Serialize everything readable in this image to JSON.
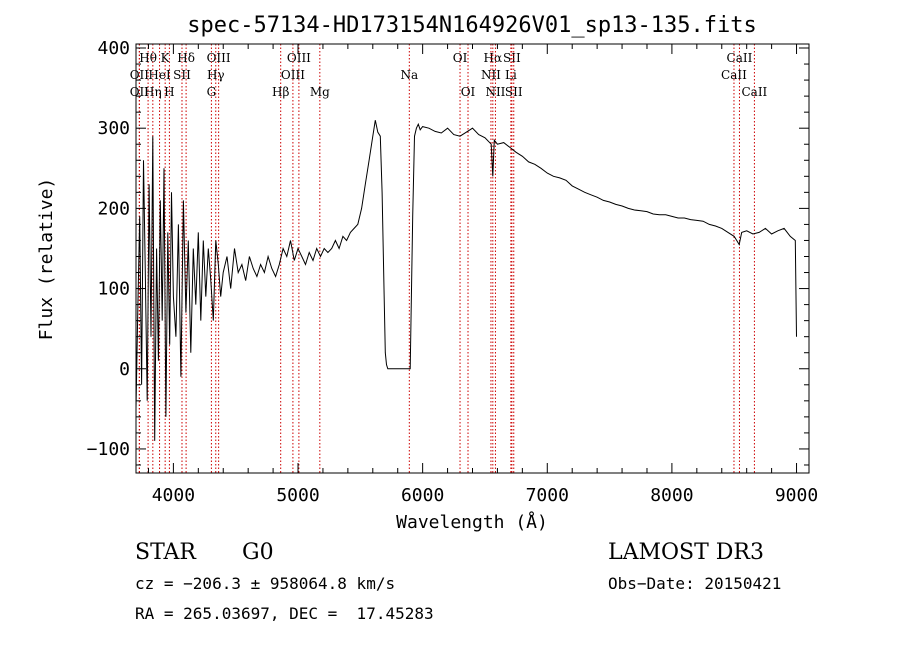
{
  "chart_data": {
    "type": "line",
    "title": "spec-57134-HD173154N164926V01_sp13-135.fits",
    "xlabel": "Wavelength (Å)",
    "ylabel": "Flux (relative)",
    "xlim": [
      3700,
      9100
    ],
    "ylim": [
      -130,
      405
    ],
    "xticks": [
      4000,
      5000,
      6000,
      7000,
      8000,
      9000
    ],
    "yticks": [
      -100,
      0,
      100,
      200,
      300,
      400
    ],
    "grid": false,
    "series": [
      {
        "name": "",
        "x": [
          3700,
          3715,
          3730,
          3745,
          3760,
          3775,
          3790,
          3805,
          3820,
          3835,
          3850,
          3865,
          3880,
          3895,
          3910,
          3925,
          3940,
          3955,
          3970,
          3985,
          4000,
          4020,
          4040,
          4060,
          4080,
          4100,
          4120,
          4140,
          4160,
          4180,
          4200,
          4220,
          4240,
          4260,
          4280,
          4300,
          4320,
          4340,
          4360,
          4380,
          4400,
          4430,
          4460,
          4490,
          4520,
          4550,
          4580,
          4610,
          4640,
          4670,
          4700,
          4730,
          4760,
          4790,
          4820,
          4850,
          4880,
          4910,
          4940,
          4970,
          5000,
          5030,
          5060,
          5090,
          5120,
          5150,
          5180,
          5210,
          5240,
          5270,
          5300,
          5330,
          5360,
          5390,
          5420,
          5450,
          5480,
          5510,
          5540,
          5570,
          5600,
          5620,
          5640,
          5660,
          5675,
          5690,
          5700,
          5710,
          5720,
          5800,
          5900,
          5920,
          5935,
          5950,
          5965,
          5980,
          6000,
          6050,
          6100,
          6150,
          6200,
          6250,
          6300,
          6350,
          6400,
          6450,
          6500,
          6550,
          6563,
          6575,
          6600,
          6650,
          6700,
          6750,
          6800,
          6850,
          6900,
          6950,
          7000,
          7050,
          7100,
          7150,
          7200,
          7250,
          7300,
          7350,
          7400,
          7450,
          7500,
          7550,
          7600,
          7650,
          7700,
          7750,
          7800,
          7850,
          7900,
          7950,
          8000,
          8050,
          8100,
          8150,
          8200,
          8250,
          8300,
          8350,
          8400,
          8450,
          8500,
          8540,
          8560,
          8600,
          8650,
          8700,
          8750,
          8800,
          8850,
          8900,
          8950,
          8990,
          9000
        ],
        "y": [
          -50,
          80,
          190,
          -20,
          260,
          120,
          -40,
          230,
          40,
          290,
          -90,
          150,
          10,
          210,
          60,
          250,
          -60,
          170,
          30,
          220,
          90,
          40,
          180,
          -10,
          210,
          70,
          160,
          20,
          150,
          80,
          170,
          60,
          160,
          90,
          150,
          110,
          60,
          160,
          130,
          90,
          120,
          140,
          100,
          150,
          120,
          130,
          110,
          140,
          125,
          115,
          130,
          120,
          140,
          125,
          115,
          130,
          150,
          140,
          160,
          135,
          150,
          140,
          130,
          145,
          135,
          150,
          140,
          150,
          145,
          150,
          160,
          150,
          165,
          160,
          170,
          175,
          180,
          200,
          230,
          260,
          290,
          310,
          295,
          290,
          220,
          100,
          20,
          5,
          0,
          0,
          0,
          190,
          290,
          300,
          305,
          298,
          302,
          300,
          296,
          294,
          300,
          292,
          290,
          295,
          300,
          292,
          288,
          280,
          240,
          285,
          280,
          282,
          276,
          270,
          265,
          258,
          255,
          250,
          244,
          240,
          238,
          235,
          228,
          224,
          220,
          217,
          214,
          210,
          208,
          205,
          203,
          200,
          198,
          197,
          196,
          193,
          192,
          192,
          190,
          188,
          188,
          186,
          185,
          184,
          180,
          178,
          175,
          170,
          165,
          155,
          170,
          172,
          168,
          170,
          175,
          168,
          172,
          175,
          165,
          160,
          40
        ]
      }
    ],
    "line_markers": [
      {
        "label": "Hθ",
        "x": 3797,
        "row": 1
      },
      {
        "label": "OII",
        "x": 3727,
        "row": 2
      },
      {
        "label": "OII",
        "x": 3727,
        "row": 3
      },
      {
        "label": "K",
        "x": 3934,
        "row": 1
      },
      {
        "label": "HeI",
        "x": 3889,
        "row": 2
      },
      {
        "label": "Hη",
        "x": 3835,
        "row": 3
      },
      {
        "label": "Hδ",
        "x": 4102,
        "row": 1
      },
      {
        "label": "SII",
        "x": 4069,
        "row": 2
      },
      {
        "label": "H",
        "x": 3968,
        "row": 3
      },
      {
        "label": "OIII",
        "x": 4363,
        "row": 1
      },
      {
        "label": "Hγ",
        "x": 4340,
        "row": 2
      },
      {
        "label": "G",
        "x": 4305,
        "row": 3
      },
      {
        "label": "OIII",
        "x": 5007,
        "row": 1
      },
      {
        "label": "OIII",
        "x": 4959,
        "row": 2
      },
      {
        "label": "Hβ",
        "x": 4861,
        "row": 3
      },
      {
        "label": "Mg",
        "x": 5175,
        "row": 3
      },
      {
        "label": "Na",
        "x": 5893,
        "row": 2
      },
      {
        "label": "OI",
        "x": 6300,
        "row": 1
      },
      {
        "label": "OI",
        "x": 6364,
        "row": 3
      },
      {
        "label": "Hα",
        "x": 6563,
        "row": 1
      },
      {
        "label": "SII",
        "x": 6716,
        "row": 1
      },
      {
        "label": "NII",
        "x": 6548,
        "row": 2
      },
      {
        "label": "Li",
        "x": 6708,
        "row": 2
      },
      {
        "label": "NII",
        "x": 6584,
        "row": 3
      },
      {
        "label": "SII",
        "x": 6731,
        "row": 3
      },
      {
        "label": "CaII",
        "x": 8542,
        "row": 1
      },
      {
        "label": "CaII",
        "x": 8498,
        "row": 2
      },
      {
        "label": "CaII",
        "x": 8662,
        "row": 3
      }
    ],
    "colors": {
      "spectrum": "#000000",
      "markers": "#cc0000"
    }
  },
  "info": {
    "object_type": "STAR",
    "subclass": "G0",
    "survey": "LAMOST DR3",
    "cz_line": "cz = −206.3 ± 958064.8 km/s",
    "obs_date_line": "Obs−Date: 20150421",
    "coords_line": "RA = 265.03697, DEC =  17.45283"
  }
}
